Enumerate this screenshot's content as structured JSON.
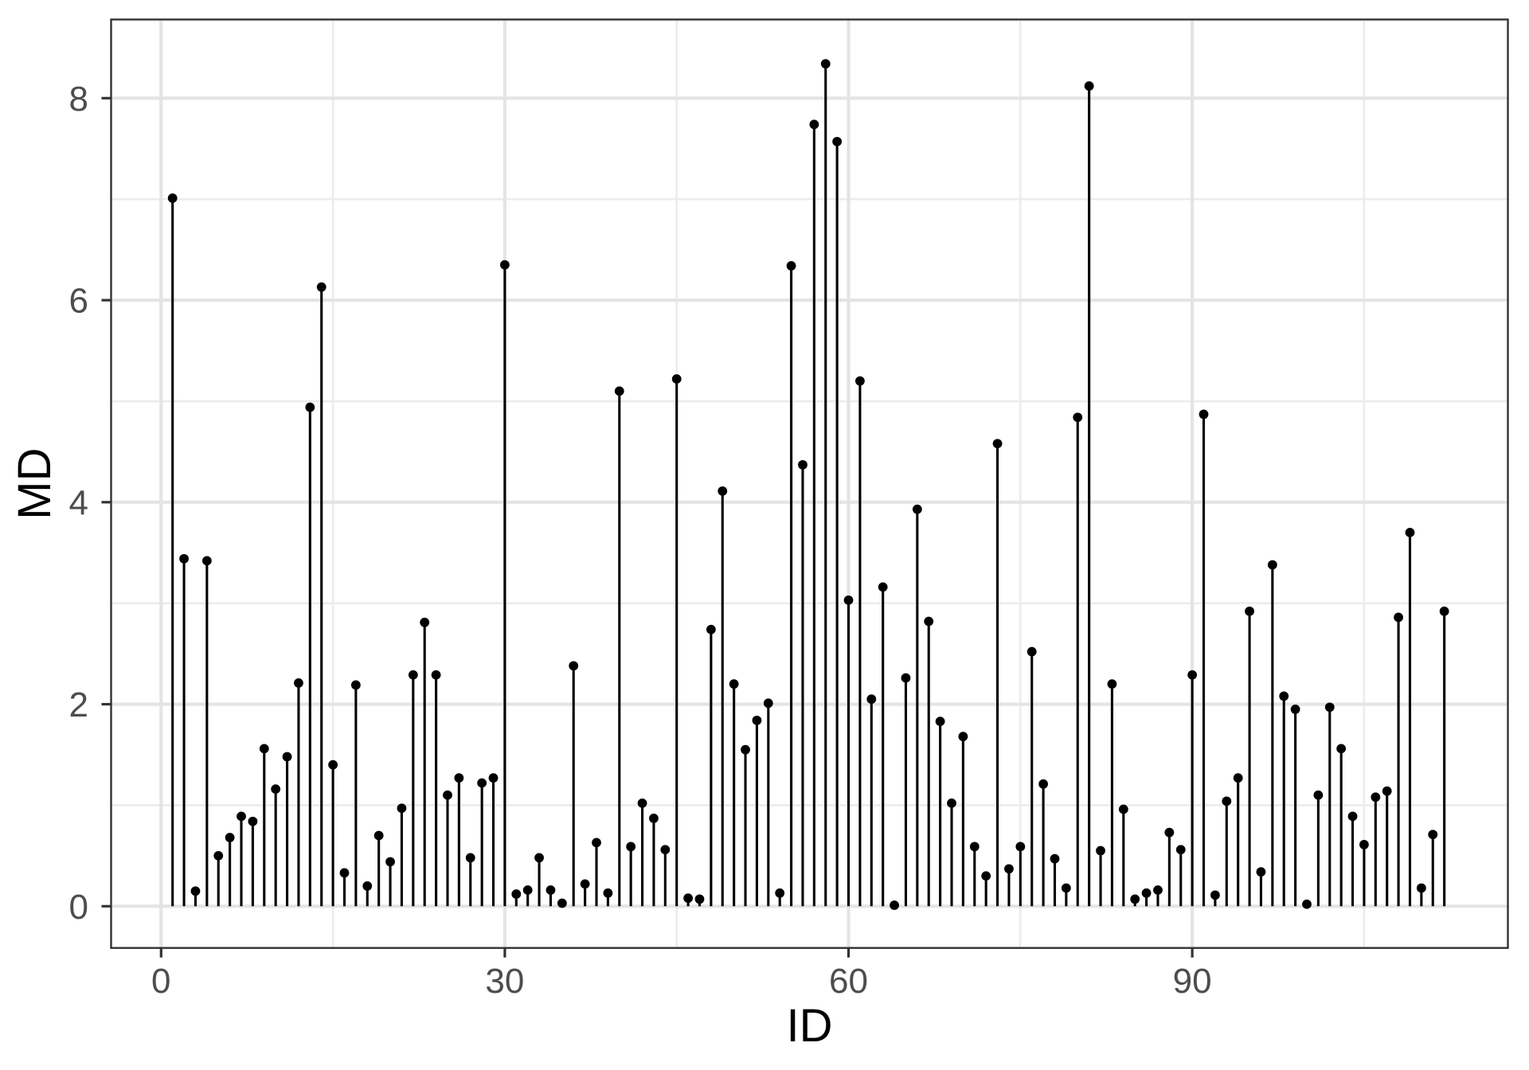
{
  "chart_data": {
    "type": "lollipop",
    "x_start": 1,
    "x_step": 1,
    "n_points": 112,
    "values": [
      7.01,
      3.44,
      0.15,
      3.42,
      0.5,
      0.68,
      0.89,
      0.84,
      1.56,
      1.16,
      1.48,
      2.21,
      4.94,
      6.13,
      1.4,
      0.33,
      2.19,
      0.2,
      0.7,
      0.44,
      0.97,
      2.29,
      2.81,
      2.29,
      1.1,
      1.27,
      0.48,
      1.22,
      1.27,
      6.35,
      0.12,
      0.16,
      0.48,
      0.16,
      0.03,
      2.38,
      0.22,
      0.63,
      0.13,
      5.1,
      0.59,
      1.02,
      0.87,
      0.56,
      5.22,
      0.08,
      0.07,
      2.74,
      4.11,
      2.2,
      1.55,
      1.84,
      2.01,
      0.13,
      6.34,
      4.37,
      7.74,
      8.34,
      7.57,
      3.03,
      5.2,
      2.05,
      3.16,
      0.01,
      2.26,
      3.93,
      2.82,
      1.83,
      1.02,
      1.68,
      0.59,
      0.3,
      4.58,
      0.37,
      0.59,
      2.52,
      1.21,
      0.47,
      0.18,
      4.84,
      8.12,
      0.55,
      2.2,
      0.96,
      0.07,
      0.13,
      0.16,
      0.73,
      0.56,
      2.29,
      4.87,
      0.11,
      1.04,
      1.27,
      2.92,
      0.34,
      3.38,
      2.08,
      1.95,
      0.02,
      1.1,
      1.97,
      1.56,
      0.89,
      0.61,
      1.08,
      1.14,
      2.86,
      3.7,
      0.18,
      0.71,
      2.92
    ],
    "title": "",
    "xlabel": "ID",
    "ylabel": "MD",
    "x_ticks": [
      0,
      30,
      60,
      90
    ],
    "x_minor_gridlines": [
      15,
      45,
      75,
      105
    ],
    "y_ticks": [
      0,
      2,
      4,
      6,
      8
    ],
    "y_minor_gridlines": [
      1,
      3,
      5,
      7
    ],
    "xlim": [
      -4.55,
      117.55
    ],
    "ylim": [
      -0.42,
      8.78
    ],
    "grid": true,
    "legend": false
  },
  "style": {
    "background": "#FFFFFF",
    "panel_border": "#333333",
    "grid_major": "#E4E4E4",
    "grid_minor": "#ECECEC",
    "tick_color": "#333333",
    "tick_label_color": "#4D4D4D",
    "axis_title_color": "#000000",
    "stem_color": "#000000",
    "point_color": "#000000"
  }
}
